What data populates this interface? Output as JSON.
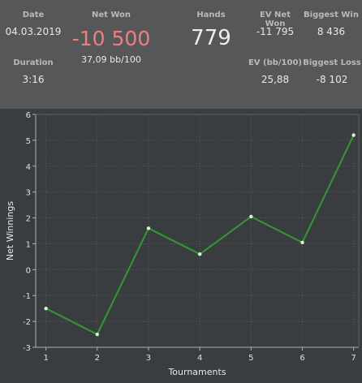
{
  "stats": {
    "date_label": "Date",
    "date_value": "04.03.2019",
    "net_won_label": "Net Won",
    "net_won_value": "-10 500",
    "net_won_sub": "37,09 bb/100",
    "hands_label": "Hands",
    "hands_value": "779",
    "ev_net_won_label": "EV Net Won",
    "ev_net_won_value": "-11 795",
    "biggest_win_label": "Biggest Win",
    "biggest_win_value": "8 436",
    "duration_label": "Duration",
    "duration_value": "3:16",
    "ev_bb100_label": "EV (bb/100)",
    "ev_bb100_value": "25,88",
    "biggest_loss_label": "Biggest Loss",
    "biggest_loss_value": "-8 102"
  },
  "colors": {
    "panel_bg": "#555759",
    "chart_bg": "#3a3d40",
    "net_won": "#f07f7c",
    "line": "#2f9a2f",
    "point": "#d6f5c6"
  },
  "chart_data": {
    "type": "line",
    "x": [
      1,
      2,
      3,
      4,
      5,
      6,
      7
    ],
    "series": [
      {
        "values": [
          -1.5,
          -2.5,
          1.6,
          0.6,
          2.05,
          1.05,
          5.2
        ]
      }
    ],
    "xlabel": "Tournaments",
    "ylabel": "Net Winnings",
    "xlim": [
      0.8,
      7.1
    ],
    "ylim": [
      -3,
      6
    ],
    "xticks": [
      "1",
      "2",
      "3",
      "4",
      "5",
      "6",
      "7"
    ],
    "yticks": [
      "-3",
      "-2",
      "-1",
      "0",
      "1",
      "2",
      "3",
      "4",
      "5",
      "6"
    ],
    "grid": true
  }
}
